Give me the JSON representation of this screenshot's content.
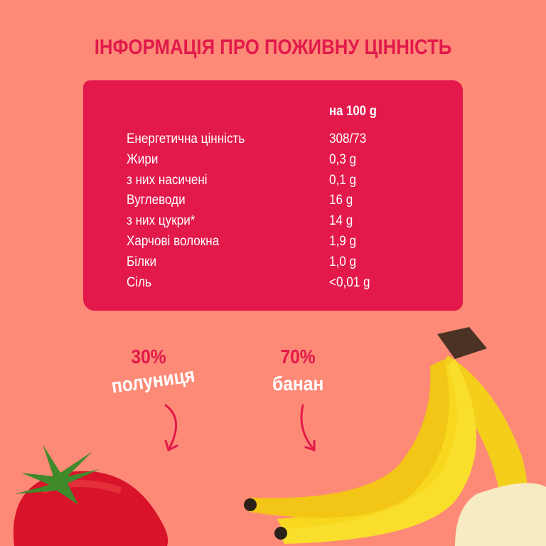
{
  "title": "ІНФОРМАЦІЯ ПРО ПОЖИВНУ ЦІННІСТЬ",
  "table": {
    "header": "на 100 g",
    "rows": [
      {
        "label": "Енергетична цінність",
        "value": "308/73"
      },
      {
        "label": "Жири",
        "value": "0,3 g"
      },
      {
        "label": "з них насичені",
        "value": "0,1 g"
      },
      {
        "label": "Вуглеводи",
        "value": "16 g"
      },
      {
        "label": "з них цукри*",
        "value": "14 g"
      },
      {
        "label": "Харчові волокна",
        "value": "1,9 g"
      },
      {
        "label": "Білки",
        "value": "1,0 g"
      },
      {
        "label": "Сіль",
        "value": "<0,01 g"
      }
    ]
  },
  "ingredients": [
    {
      "percent": "30%",
      "name": "полуниця"
    },
    {
      "percent": "70%",
      "name": "банан"
    }
  ],
  "colors": {
    "background": "#fd8a77",
    "accent": "#e3194b",
    "text": "#ffffff"
  }
}
